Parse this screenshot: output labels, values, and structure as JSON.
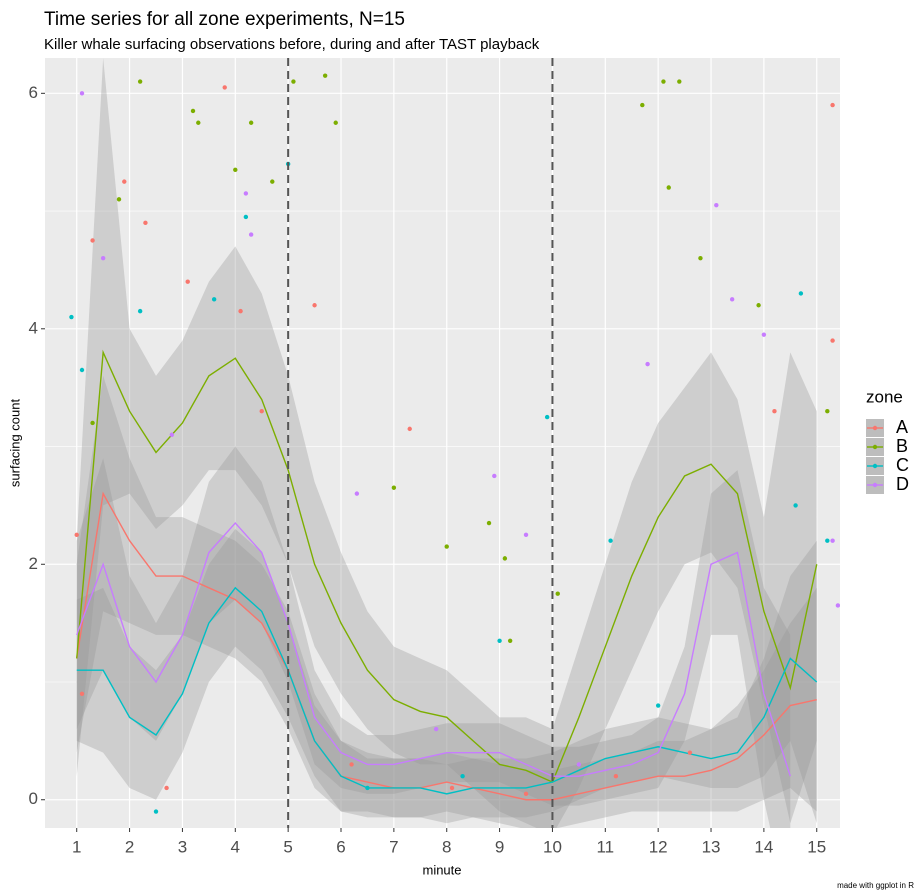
{
  "chart_data": {
    "type": "line",
    "title": "Time series for all zone experiments, N=15",
    "subtitle": "Killer whale surfacing observations before, during and after TAST playback",
    "xlabel": "minute",
    "ylabel": "surfacing count",
    "legend_title": "zone",
    "legend_position": "right",
    "caption": "made with ggplot in R",
    "grid": true,
    "xlim": [
      0.4,
      15.44
    ],
    "ylim": [
      -0.24,
      6.3
    ],
    "xticks": [
      1,
      2,
      3,
      4,
      5,
      6,
      7,
      8,
      9,
      10,
      11,
      12,
      13,
      14,
      15
    ],
    "yticks": [
      0,
      2,
      4,
      6
    ],
    "y_minor_grid": [
      1,
      3,
      5
    ],
    "vlines": [
      5,
      10
    ],
    "x": [
      1,
      1.5,
      2,
      2.5,
      3,
      3.5,
      4,
      4.5,
      5,
      5.5,
      6,
      6.5,
      7,
      7.5,
      8,
      8.5,
      9,
      9.5,
      10,
      10.5,
      11,
      11.5,
      12,
      12.5,
      13,
      13.5,
      14,
      14.5,
      15
    ],
    "series": [
      {
        "name": "A",
        "color": "#F8766D",
        "values": [
          1.2,
          2.6,
          2.2,
          1.9,
          1.9,
          1.8,
          1.7,
          1.5,
          1.1,
          0.5,
          0.2,
          0.15,
          0.1,
          0.1,
          0.15,
          0.1,
          0.05,
          0.0,
          0.0,
          0.05,
          0.1,
          0.15,
          0.2,
          0.2,
          0.25,
          0.35,
          0.55,
          0.8,
          0.85
        ],
        "lower": [
          0.4,
          1.6,
          1.5,
          1.4,
          1.4,
          1.3,
          1.2,
          1.0,
          0.6,
          0.1,
          -0.1,
          -0.1,
          -0.15,
          -0.15,
          -0.1,
          -0.15,
          -0.2,
          -0.25,
          -0.25,
          -0.2,
          -0.15,
          -0.1,
          -0.1,
          -0.1,
          -0.1,
          -0.1,
          0.0,
          0.1,
          -0.1
        ],
        "upper": [
          2.0,
          3.6,
          2.9,
          2.4,
          2.4,
          2.3,
          2.2,
          2.0,
          1.6,
          0.9,
          0.5,
          0.4,
          0.35,
          0.35,
          0.4,
          0.35,
          0.3,
          0.25,
          0.25,
          0.3,
          0.35,
          0.4,
          0.5,
          0.5,
          0.6,
          0.8,
          1.1,
          1.5,
          1.8
        ],
        "points": {
          "x": [
            1,
            1.3,
            1.9,
            2.3,
            3.1,
            3.8,
            4.1,
            5.5,
            7.3,
            1.1,
            2.7,
            6.2,
            8.1,
            9.5,
            11.2,
            12.6,
            14.2,
            15.3,
            15.3,
            4.5
          ],
          "y": [
            2.25,
            4.75,
            5.25,
            4.9,
            4.4,
            6.05,
            4.15,
            4.2,
            3.15,
            0.9,
            0.1,
            0.3,
            0.1,
            0.05,
            0.2,
            0.4,
            3.3,
            5.9,
            3.9,
            3.3
          ]
        }
      },
      {
        "name": "B",
        "color": "#7CAE00",
        "values": [
          1.2,
          3.8,
          3.3,
          2.95,
          3.2,
          3.6,
          3.75,
          3.4,
          2.8,
          2.0,
          1.5,
          1.1,
          0.85,
          0.75,
          0.7,
          0.5,
          0.3,
          0.25,
          0.15,
          0.7,
          1.3,
          1.9,
          2.4,
          2.75,
          2.85,
          2.6,
          1.6,
          0.95,
          2.0
        ],
        "lower": [
          0.2,
          2.5,
          2.6,
          2.3,
          2.5,
          2.8,
          2.8,
          2.5,
          2.0,
          1.3,
          0.9,
          0.6,
          0.4,
          0.3,
          0.3,
          0.1,
          -0.1,
          -0.2,
          -0.3,
          0.1,
          0.6,
          1.1,
          1.6,
          2.0,
          2.1,
          1.8,
          0.8,
          -0.2,
          0.5
        ],
        "upper": [
          2.2,
          6.3,
          4.0,
          3.6,
          3.9,
          4.4,
          4.7,
          4.3,
          3.6,
          2.7,
          2.1,
          1.6,
          1.3,
          1.2,
          1.1,
          0.9,
          0.7,
          0.7,
          0.6,
          1.3,
          2.0,
          2.7,
          3.2,
          3.5,
          3.8,
          3.4,
          2.4,
          3.8,
          3.3
        ],
        "points": {
          "x": [
            1.3,
            1.8,
            2.2,
            3.2,
            3.3,
            4,
            4.3,
            4.7,
            5.1,
            5.7,
            5.9,
            7,
            8,
            8.8,
            9.1,
            11.7,
            12.1,
            12.4,
            12.2,
            12.8,
            13.9,
            15.2,
            9.2,
            10.1
          ],
          "y": [
            3.2,
            5.1,
            6.1,
            5.85,
            5.75,
            5.35,
            5.75,
            5.25,
            6.1,
            6.15,
            5.75,
            2.65,
            2.15,
            2.35,
            2.05,
            5.9,
            6.1,
            6.1,
            5.2,
            4.6,
            4.2,
            3.3,
            1.35,
            1.75
          ]
        }
      },
      {
        "name": "C",
        "color": "#00BFC4",
        "values": [
          1.1,
          1.1,
          0.7,
          0.55,
          0.9,
          1.5,
          1.8,
          1.6,
          1.1,
          0.5,
          0.2,
          0.1,
          0.1,
          0.1,
          0.05,
          0.1,
          0.1,
          0.1,
          0.15,
          0.25,
          0.35,
          0.4,
          0.45,
          0.4,
          0.35,
          0.4,
          0.7,
          1.2,
          1.0
        ],
        "lower": [
          0.5,
          0.4,
          0.1,
          0.0,
          0.4,
          1.0,
          1.3,
          1.1,
          0.7,
          0.2,
          -0.1,
          -0.15,
          -0.15,
          -0.15,
          -0.2,
          -0.15,
          -0.15,
          -0.15,
          -0.1,
          0.0,
          0.1,
          0.15,
          0.2,
          0.15,
          0.1,
          0.1,
          0.2,
          0.5,
          -0.2
        ],
        "upper": [
          1.7,
          1.8,
          1.3,
          1.1,
          1.4,
          2.0,
          2.3,
          2.1,
          1.5,
          0.8,
          0.5,
          0.35,
          0.35,
          0.35,
          0.3,
          0.35,
          0.35,
          0.35,
          0.4,
          0.5,
          0.6,
          0.65,
          0.7,
          0.65,
          0.6,
          0.7,
          1.2,
          1.9,
          2.2
        ],
        "points": {
          "x": [
            0.9,
            1.1,
            2.2,
            3.6,
            4.2,
            5,
            9,
            9.9,
            11.1,
            14.7,
            15.2,
            14.6,
            6.5,
            8.3,
            12,
            2.5
          ],
          "y": [
            4.1,
            3.65,
            4.15,
            4.25,
            4.95,
            5.4,
            1.35,
            3.25,
            2.2,
            4.3,
            2.2,
            2.5,
            0.1,
            0.2,
            0.8,
            -0.1
          ]
        }
      },
      {
        "name": "D",
        "color": "#C77CFF",
        "values": [
          1.4,
          2.0,
          1.3,
          1.0,
          1.4,
          2.1,
          2.35,
          2.1,
          1.5,
          0.7,
          0.4,
          0.3,
          0.3,
          0.35,
          0.4,
          0.4,
          0.4,
          0.3,
          0.2,
          0.2,
          0.25,
          0.3,
          0.4,
          0.9,
          2.0,
          2.1,
          0.9,
          0.2,
          null
        ],
        "lower": [
          0.6,
          1.1,
          0.7,
          0.5,
          0.9,
          1.5,
          1.7,
          1.5,
          1.0,
          0.3,
          0.1,
          0.05,
          0.05,
          0.1,
          0.15,
          0.15,
          0.15,
          0.05,
          -0.05,
          -0.05,
          0.0,
          0.05,
          0.1,
          0.5,
          1.4,
          1.4,
          0.0,
          -1.0,
          null
        ],
        "upper": [
          2.2,
          2.9,
          1.9,
          1.5,
          1.9,
          2.7,
          3.0,
          2.7,
          2.0,
          1.1,
          0.7,
          0.55,
          0.55,
          0.6,
          0.65,
          0.65,
          0.65,
          0.55,
          0.45,
          0.45,
          0.5,
          0.55,
          0.7,
          1.3,
          2.6,
          2.8,
          1.8,
          1.4,
          null
        ],
        "points": {
          "x": [
            1.1,
            1.5,
            4.2,
            4.3,
            8.9,
            9.5,
            11.8,
            13.1,
            13.4,
            14,
            15.3,
            15.4,
            2.8,
            6.3,
            10.5,
            7.8
          ],
          "y": [
            6.0,
            4.6,
            5.15,
            4.8,
            2.75,
            2.25,
            3.7,
            5.05,
            4.25,
            3.95,
            2.2,
            1.65,
            3.1,
            2.6,
            0.3,
            0.6
          ]
        }
      }
    ]
  }
}
